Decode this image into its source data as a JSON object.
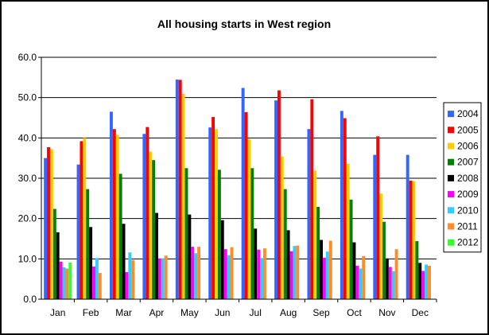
{
  "chart_data": {
    "type": "bar",
    "title": "All housing starts in West region",
    "xlabel": "",
    "ylabel": "",
    "ylim": [
      0,
      60
    ],
    "yticks": [
      "0.0",
      "10.0",
      "20.0",
      "30.0",
      "40.0",
      "50.0",
      "60.0"
    ],
    "grid": true,
    "legend_position": "right",
    "categories": [
      "Jan",
      "Feb",
      "Mar",
      "Apr",
      "May",
      "Jun",
      "Jul",
      "Aug",
      "Sep",
      "Oct",
      "Nov",
      "Dec"
    ],
    "series": [
      {
        "name": "2004",
        "color": "#3366ff",
        "values": [
          35.0,
          33.4,
          46.5,
          41.0,
          54.5,
          42.6,
          52.4,
          49.3,
          42.2,
          46.7,
          35.8,
          35.8
        ]
      },
      {
        "name": "2005",
        "color": "#ff0000",
        "values": [
          37.7,
          39.2,
          42.2,
          42.7,
          54.4,
          45.2,
          46.4,
          51.8,
          49.6,
          44.9,
          40.4,
          29.4
        ]
      },
      {
        "name": "2006",
        "color": "#ffcc00",
        "values": [
          37.2,
          40.0,
          40.8,
          36.6,
          50.9,
          42.2,
          39.7,
          35.4,
          31.9,
          33.6,
          26.2,
          29.3
        ]
      },
      {
        "name": "2007",
        "color": "#008000",
        "values": [
          22.4,
          27.3,
          31.1,
          34.5,
          32.5,
          32.1,
          32.5,
          27.3,
          22.9,
          24.7,
          19.2,
          14.4
        ]
      },
      {
        "name": "2008",
        "color": "#000000",
        "values": [
          16.6,
          17.9,
          18.7,
          21.4,
          21.0,
          19.6,
          17.5,
          17.1,
          14.7,
          14.1,
          10.1,
          9.0
        ]
      },
      {
        "name": "2009",
        "color": "#ff00ff",
        "values": [
          9.3,
          8.1,
          6.7,
          10.1,
          13.0,
          12.4,
          12.3,
          11.9,
          10.3,
          8.3,
          8.0,
          7.0
        ]
      },
      {
        "name": "2010",
        "color": "#33ccff",
        "values": [
          7.9,
          10.2,
          11.6,
          10.1,
          11.4,
          10.9,
          10.2,
          13.2,
          11.8,
          7.6,
          6.9,
          8.6
        ]
      },
      {
        "name": "2011",
        "color": "#ff8c28",
        "values": [
          7.6,
          6.5,
          9.7,
          10.8,
          13.0,
          12.9,
          12.6,
          13.3,
          14.5,
          10.7,
          12.4,
          8.3
        ]
      },
      {
        "name": "2012",
        "color": "#33ff33",
        "values": [
          9.1,
          null,
          null,
          null,
          null,
          null,
          null,
          null,
          null,
          null,
          null,
          null
        ]
      }
    ]
  }
}
